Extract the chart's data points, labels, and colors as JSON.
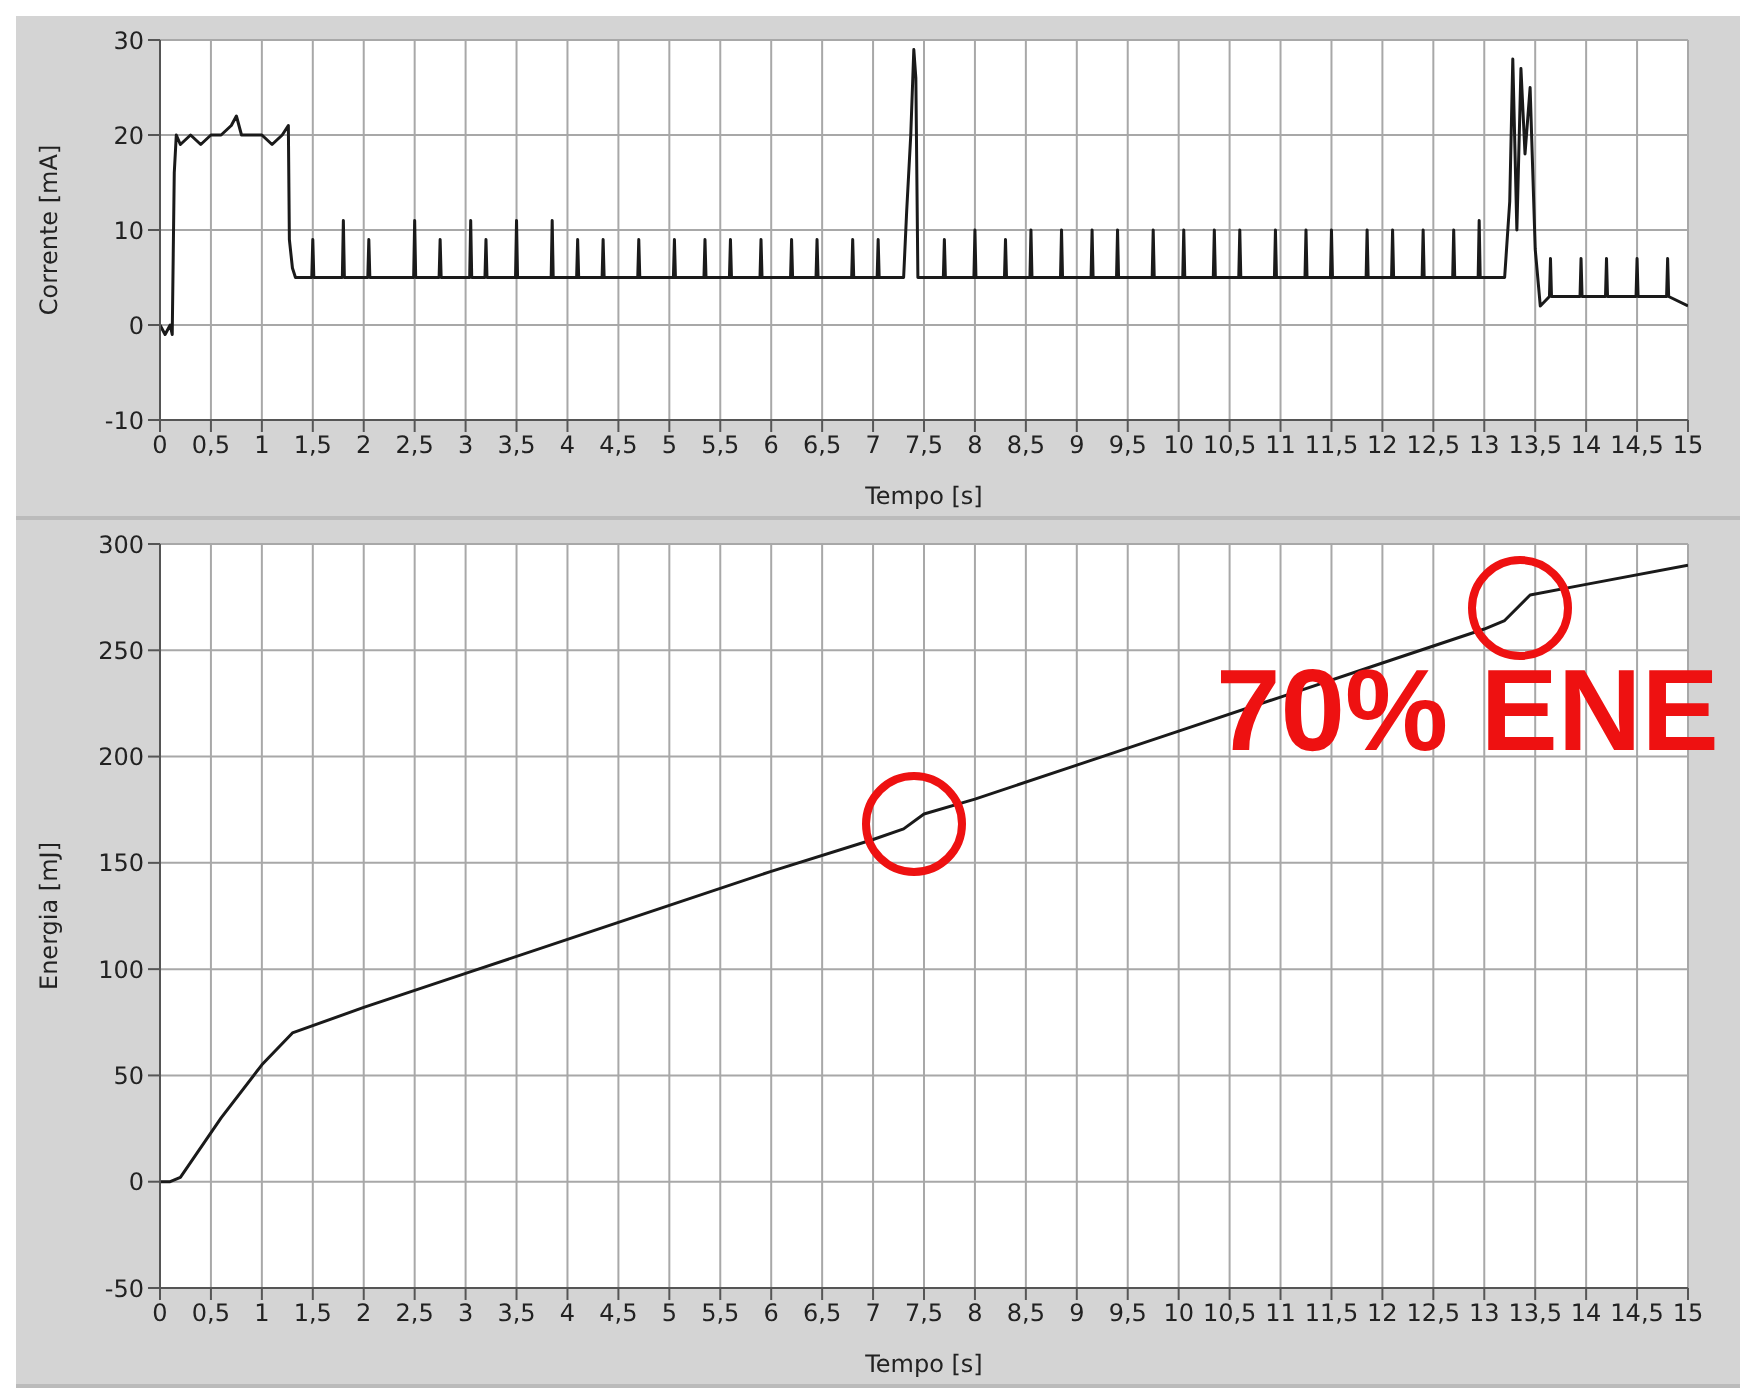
{
  "chart_data": [
    {
      "type": "line",
      "xlabel": "Tempo [s]",
      "ylabel": "Corrente [mA]",
      "grid": true,
      "marker": "none",
      "xlim": [
        0,
        15
      ],
      "ylim": [
        -10,
        30
      ],
      "yticks": [
        -10,
        0,
        10,
        20,
        30
      ],
      "xticks": [
        0,
        {
          "value": 0.5,
          "label": "0,5"
        },
        1,
        {
          "value": 1.5,
          "label": "1,5"
        },
        2,
        {
          "value": 2.5,
          "label": "2,5"
        },
        3,
        {
          "value": 3.5,
          "label": "3,5"
        },
        4,
        {
          "value": 4.5,
          "label": "4,5"
        },
        5,
        {
          "value": 5.5,
          "label": "5,5"
        },
        6,
        {
          "value": 6.5,
          "label": "6,5"
        },
        7,
        {
          "value": 7.5,
          "label": "7,5"
        },
        8,
        {
          "value": 8.5,
          "label": "8,5"
        },
        9,
        {
          "value": 9.5,
          "label": "9,5"
        },
        10,
        {
          "value": 10.5,
          "label": "10,5"
        },
        11,
        {
          "value": 11.5,
          "label": "11,5"
        },
        12,
        {
          "value": 12.5,
          "label": "12,5"
        },
        13,
        {
          "value": 13.5,
          "label": "13,5"
        },
        14,
        {
          "value": 14.5,
          "label": "14,5"
        },
        15
      ],
      "series": [
        {
          "color": "#1a1a1a",
          "x": [
            0,
            0.05,
            0.1,
            0.12,
            0.14,
            0.16,
            0.2,
            0.3,
            0.4,
            0.5,
            0.6,
            0.7,
            0.75,
            0.8,
            0.9,
            1,
            1.1,
            1.2,
            1.26,
            1.27,
            1.3,
            1.33,
            1.49,
            1.5,
            1.51,
            1.79,
            1.8,
            1.81,
            2.04,
            2.05,
            2.06,
            2.49,
            2.5,
            2.51,
            2.74,
            2.75,
            2.76,
            3.04,
            3.05,
            3.06,
            3.19,
            3.2,
            3.21,
            3.49,
            3.5,
            3.51,
            3.84,
            3.85,
            3.86,
            4.09,
            4.1,
            4.11,
            4.34,
            4.35,
            4.36,
            4.69,
            4.7,
            4.71,
            5.04,
            5.05,
            5.06,
            5.34,
            5.35,
            5.36,
            5.59,
            5.6,
            5.61,
            5.89,
            5.9,
            5.91,
            6.19,
            6.2,
            6.21,
            6.44,
            6.45,
            6.46,
            6.79,
            6.8,
            6.81,
            7.04,
            7.05,
            7.06,
            7.3,
            7.33,
            7.37,
            7.4,
            7.42,
            7.44,
            7.69,
            7.7,
            7.71,
            7.99,
            8,
            8.01,
            8.29,
            8.3,
            8.31,
            8.54,
            8.55,
            8.56,
            8.84,
            8.85,
            8.86,
            9.14,
            9.15,
            9.16,
            9.39,
            9.4,
            9.41,
            9.74,
            9.75,
            9.76,
            10.04,
            10.05,
            10.06,
            10.34,
            10.35,
            10.36,
            10.59,
            10.6,
            10.61,
            10.94,
            10.95,
            10.96,
            11.24,
            11.25,
            11.26,
            11.49,
            11.5,
            11.51,
            11.84,
            11.85,
            11.86,
            12.09,
            12.1,
            12.11,
            12.39,
            12.4,
            12.41,
            12.69,
            12.7,
            12.71,
            12.94,
            12.95,
            12.96,
            13.2,
            13.25,
            13.28,
            13.32,
            13.36,
            13.4,
            13.45,
            13.5,
            13.55,
            13.64,
            13.65,
            13.66,
            13.94,
            13.95,
            13.96,
            14.19,
            14.2,
            14.21,
            14.49,
            14.5,
            14.51,
            14.79,
            14.8,
            14.81,
            15
          ],
          "values": [
            0,
            -1,
            0,
            -1,
            16,
            20,
            19,
            20,
            19,
            20,
            20,
            21,
            22,
            20,
            20,
            20,
            19,
            20,
            21,
            9,
            6,
            5,
            5,
            9,
            5,
            5,
            11,
            5,
            5,
            9,
            5,
            5,
            11,
            5,
            5,
            9,
            5,
            5,
            11,
            5,
            5,
            9,
            5,
            5,
            11,
            5,
            5,
            11,
            5,
            5,
            9,
            5,
            5,
            9,
            5,
            5,
            9,
            5,
            5,
            9,
            5,
            5,
            9,
            5,
            5,
            9,
            5,
            5,
            9,
            5,
            5,
            9,
            5,
            5,
            9,
            5,
            5,
            9,
            5,
            5,
            9,
            5,
            5,
            12,
            20,
            29,
            26,
            5,
            5,
            9,
            5,
            5,
            10,
            5,
            5,
            9,
            5,
            5,
            10,
            5,
            5,
            10,
            5,
            5,
            10,
            5,
            5,
            10,
            5,
            5,
            10,
            5,
            5,
            10,
            5,
            5,
            10,
            5,
            5,
            10,
            5,
            5,
            10,
            5,
            5,
            10,
            5,
            5,
            10,
            5,
            5,
            10,
            5,
            5,
            10,
            5,
            5,
            10,
            5,
            5,
            10,
            5,
            5,
            11,
            5,
            5,
            13,
            28,
            10,
            27,
            18,
            25,
            8,
            2,
            3,
            7,
            3,
            3,
            7,
            3,
            3,
            7,
            3,
            3,
            7,
            3,
            3,
            7,
            3,
            2
          ]
        }
      ]
    },
    {
      "type": "line",
      "xlabel": "Tempo [s]",
      "ylabel": "Energia [mJ]",
      "grid": true,
      "marker": "none",
      "xlim": [
        0,
        15
      ],
      "ylim": [
        -50,
        300
      ],
      "yticks": [
        -50,
        0,
        50,
        100,
        150,
        200,
        250,
        300
      ],
      "xticks": [
        0,
        {
          "value": 0.5,
          "label": "0,5"
        },
        1,
        {
          "value": 1.5,
          "label": "1,5"
        },
        2,
        {
          "value": 2.5,
          "label": "2,5"
        },
        3,
        {
          "value": 3.5,
          "label": "3,5"
        },
        4,
        {
          "value": 4.5,
          "label": "4,5"
        },
        5,
        {
          "value": 5.5,
          "label": "5,5"
        },
        6,
        {
          "value": 6.5,
          "label": "6,5"
        },
        7,
        {
          "value": 7.5,
          "label": "7,5"
        },
        8,
        {
          "value": 8.5,
          "label": "8,5"
        },
        9,
        {
          "value": 9.5,
          "label": "9,5"
        },
        10,
        {
          "value": 10.5,
          "label": "10,5"
        },
        11,
        {
          "value": 11.5,
          "label": "11,5"
        },
        12,
        {
          "value": 12.5,
          "label": "12,5"
        },
        13,
        {
          "value": 13.5,
          "label": "13,5"
        },
        14,
        {
          "value": 14.5,
          "label": "14,5"
        },
        15
      ],
      "annotations": [
        "70% ENE"
      ],
      "series": [
        {
          "color": "#1a1a1a",
          "x": [
            0,
            0.1,
            0.2,
            0.6,
            1,
            1.3,
            2,
            3,
            4,
            5,
            6,
            7,
            7.3,
            7.5,
            8,
            9,
            10,
            11,
            12,
            13,
            13.2,
            13.45,
            14,
            15
          ],
          "values": [
            0,
            0,
            2,
            30,
            55,
            70,
            82,
            98,
            114,
            130,
            146,
            161,
            166,
            173,
            180,
            196,
            212,
            228,
            244,
            260,
            264,
            276,
            281,
            290
          ]
        }
      ]
    }
  ]
}
